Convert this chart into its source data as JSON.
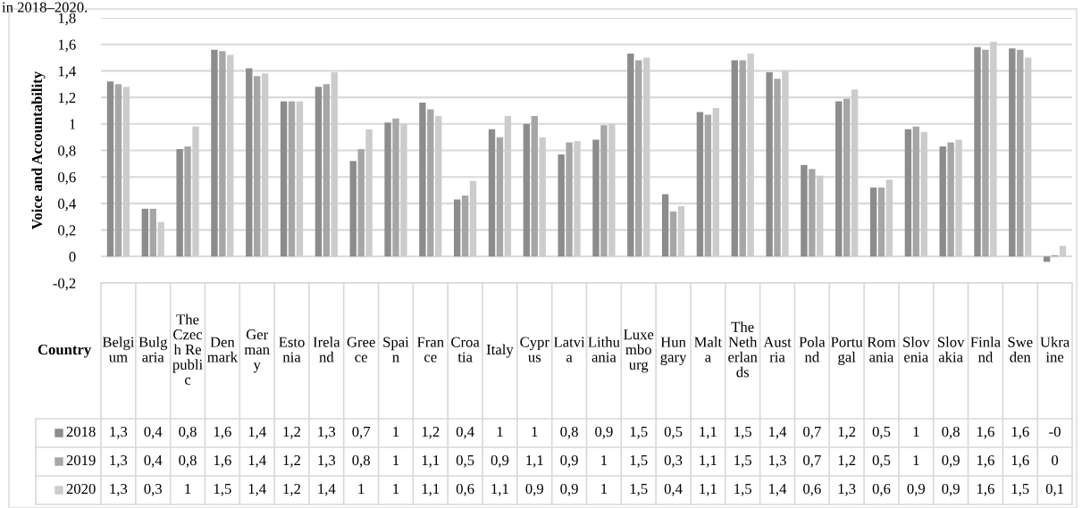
{
  "chart_data": {
    "type": "bar",
    "ylabel": "Voice and Accountability",
    "annotations": [
      "in 2018–2020."
    ],
    "legend_title": "Country",
    "categories": [
      "Belgium",
      "Bulgaria",
      "The Czech Republic",
      "Denmark",
      "Germany",
      "Estonia",
      "Ireland",
      "Greece",
      "Spain",
      "France",
      "Croatia",
      "Italy",
      "Cyprus",
      "Latvia",
      "Lithuania",
      "Luxembourg",
      "Hungary",
      "Malta",
      "The Netherlands",
      "Austria",
      "Poland",
      "Portugal",
      "Romania",
      "Slovenia",
      "Slovakia",
      "Finland",
      "Sweden",
      "Ukraine"
    ],
    "series": [
      {
        "name": "2018",
        "color": "#8c8c8c",
        "values": [
          1.32,
          0.36,
          0.81,
          1.56,
          1.42,
          1.17,
          1.28,
          0.72,
          1.01,
          1.16,
          0.43,
          0.96,
          1.0,
          0.77,
          0.88,
          1.53,
          0.47,
          1.09,
          1.48,
          1.39,
          0.69,
          1.17,
          0.52,
          0.96,
          0.83,
          1.58,
          1.57,
          -0.04
        ],
        "value_labels": [
          "1,3",
          "0,4",
          "0,8",
          "1,6",
          "1,4",
          "1,2",
          "1,3",
          "0,7",
          "1",
          "1,2",
          "0,4",
          "1",
          "1",
          "0,8",
          "0,9",
          "1,5",
          "0,5",
          "1,1",
          "1,5",
          "1,4",
          "0,7",
          "1,2",
          "0,5",
          "1",
          "0,8",
          "1,6",
          "1,6",
          "-0"
        ]
      },
      {
        "name": "2019",
        "color": "#a6a6a6",
        "values": [
          1.3,
          0.36,
          0.83,
          1.55,
          1.36,
          1.17,
          1.3,
          0.81,
          1.04,
          1.11,
          0.46,
          0.9,
          1.06,
          0.86,
          0.99,
          1.48,
          0.34,
          1.07,
          1.48,
          1.34,
          0.66,
          1.19,
          0.52,
          0.98,
          0.86,
          1.56,
          1.56,
          0.01
        ],
        "value_labels": [
          "1,3",
          "0,4",
          "0,8",
          "1,6",
          "1,4",
          "1,2",
          "1,3",
          "0,8",
          "1",
          "1,1",
          "0,5",
          "0,9",
          "1,1",
          "0,9",
          "1",
          "1,5",
          "0,3",
          "1,1",
          "1,5",
          "1,3",
          "0,7",
          "1,2",
          "0,5",
          "1",
          "0,9",
          "1,6",
          "1,6",
          "0"
        ]
      },
      {
        "name": "2020",
        "color": "#cccccc",
        "values": [
          1.28,
          0.26,
          0.98,
          1.52,
          1.38,
          1.17,
          1.39,
          0.96,
          1.0,
          1.06,
          0.57,
          1.06,
          0.9,
          0.87,
          1.0,
          1.5,
          0.38,
          1.12,
          1.53,
          1.4,
          0.61,
          1.26,
          0.58,
          0.94,
          0.88,
          1.62,
          1.5,
          0.08
        ],
        "value_labels": [
          "1,3",
          "0,3",
          "1",
          "1,5",
          "1,4",
          "1,2",
          "1,4",
          "1",
          "1",
          "1,1",
          "0,6",
          "1,1",
          "0,9",
          "0,9",
          "1",
          "1,5",
          "0,4",
          "1,1",
          "1,5",
          "1,4",
          "0,6",
          "1,3",
          "0,6",
          "0,9",
          "0,9",
          "1,6",
          "1,5",
          "0,1"
        ]
      }
    ],
    "ylim": [
      -0.2,
      1.8
    ],
    "yticks": [
      {
        "value": -0.2,
        "label": "-0,2"
      },
      0,
      {
        "value": 0.2,
        "label": "0,2"
      },
      {
        "value": 0.4,
        "label": "0,4"
      },
      {
        "value": 0.6,
        "label": "0,6"
      },
      {
        "value": 0.8,
        "label": "0,8"
      },
      1,
      {
        "value": 1.2,
        "label": "1,2"
      },
      {
        "value": 1.4,
        "label": "1,4"
      },
      {
        "value": 1.6,
        "label": "1,6"
      },
      {
        "value": 1.8,
        "label": "1,8"
      }
    ],
    "grid": "y",
    "legend": "bottom left"
  }
}
